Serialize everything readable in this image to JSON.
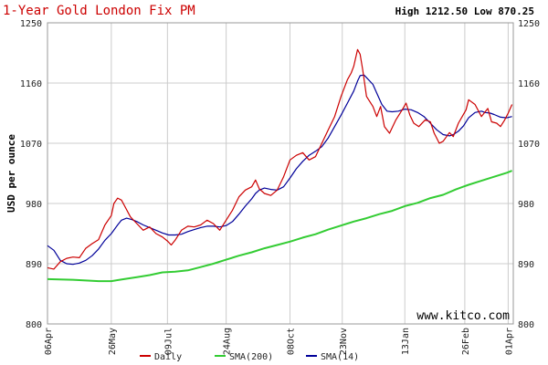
{
  "chart_data": {
    "type": "line",
    "title": "1-Year Gold London Fix PM",
    "high_label": "High",
    "high_value": "1212.50",
    "low_label": "Low",
    "low_value": "870.25",
    "ylabel": "USD per ounce",
    "watermark": "www.kitco.com",
    "ylim": [
      800,
      1250
    ],
    "yticks": [
      800,
      890,
      980,
      1070,
      1160,
      1250
    ],
    "yticklabels": [
      "800",
      "890",
      "980",
      "1070",
      "1160",
      "1250"
    ],
    "xlim": [
      0,
      365
    ],
    "xticks": [
      0,
      50,
      94,
      140,
      190,
      231,
      280,
      327,
      361
    ],
    "xticklabels": [
      "06Apr",
      "26May",
      "09Jul",
      "24Aug",
      "08Oct",
      "23Nov",
      "13Jan",
      "26Feb",
      "01Apr"
    ],
    "grid": true,
    "legend_position": "bottom",
    "series": [
      {
        "name": "Daily",
        "color": "#cc0000",
        "points": [
          [
            0,
            884
          ],
          [
            5,
            882
          ],
          [
            10,
            893
          ],
          [
            15,
            898
          ],
          [
            20,
            900
          ],
          [
            25,
            899
          ],
          [
            30,
            913
          ],
          [
            35,
            920
          ],
          [
            40,
            926
          ],
          [
            45,
            948
          ],
          [
            50,
            962
          ],
          [
            52,
            980
          ],
          [
            55,
            988
          ],
          [
            58,
            985
          ],
          [
            60,
            978
          ],
          [
            65,
            960
          ],
          [
            70,
            950
          ],
          [
            75,
            940
          ],
          [
            80,
            945
          ],
          [
            85,
            935
          ],
          [
            90,
            930
          ],
          [
            94,
            924
          ],
          [
            97,
            918
          ],
          [
            100,
            925
          ],
          [
            105,
            940
          ],
          [
            110,
            946
          ],
          [
            115,
            945
          ],
          [
            120,
            948
          ],
          [
            125,
            955
          ],
          [
            130,
            950
          ],
          [
            135,
            940
          ],
          [
            140,
            955
          ],
          [
            145,
            970
          ],
          [
            150,
            990
          ],
          [
            155,
            1000
          ],
          [
            160,
            1005
          ],
          [
            163,
            1015
          ],
          [
            166,
            1002
          ],
          [
            170,
            995
          ],
          [
            175,
            992
          ],
          [
            180,
            1000
          ],
          [
            185,
            1020
          ],
          [
            190,
            1045
          ],
          [
            195,
            1052
          ],
          [
            200,
            1056
          ],
          [
            205,
            1045
          ],
          [
            210,
            1050
          ],
          [
            215,
            1070
          ],
          [
            220,
            1090
          ],
          [
            225,
            1110
          ],
          [
            230,
            1140
          ],
          [
            235,
            1165
          ],
          [
            238,
            1175
          ],
          [
            240,
            1185
          ],
          [
            243,
            1210
          ],
          [
            245,
            1203
          ],
          [
            247,
            1180
          ],
          [
            250,
            1140
          ],
          [
            255,
            1125
          ],
          [
            258,
            1110
          ],
          [
            261,
            1125
          ],
          [
            264,
            1095
          ],
          [
            268,
            1085
          ],
          [
            273,
            1105
          ],
          [
            278,
            1120
          ],
          [
            281,
            1130
          ],
          [
            284,
            1112
          ],
          [
            287,
            1100
          ],
          [
            291,
            1095
          ],
          [
            296,
            1105
          ],
          [
            300,
            1102
          ],
          [
            303,
            1085
          ],
          [
            307,
            1070
          ],
          [
            310,
            1073
          ],
          [
            315,
            1086
          ],
          [
            318,
            1080
          ],
          [
            322,
            1100
          ],
          [
            325,
            1110
          ],
          [
            328,
            1120
          ],
          [
            330,
            1135
          ],
          [
            335,
            1128
          ],
          [
            340,
            1110
          ],
          [
            345,
            1122
          ],
          [
            348,
            1102
          ],
          [
            352,
            1100
          ],
          [
            355,
            1095
          ],
          [
            358,
            1104
          ],
          [
            361,
            1115
          ],
          [
            364,
            1128
          ]
        ]
      },
      {
        "name": "SMA(200)",
        "color": "#33cc33",
        "points": [
          [
            0,
            867
          ],
          [
            20,
            866
          ],
          [
            40,
            864
          ],
          [
            50,
            864
          ],
          [
            60,
            867
          ],
          [
            70,
            870
          ],
          [
            80,
            873
          ],
          [
            90,
            877
          ],
          [
            100,
            878
          ],
          [
            110,
            880
          ],
          [
            120,
            885
          ],
          [
            130,
            890
          ],
          [
            140,
            896
          ],
          [
            150,
            902
          ],
          [
            160,
            907
          ],
          [
            170,
            913
          ],
          [
            180,
            918
          ],
          [
            190,
            923
          ],
          [
            200,
            929
          ],
          [
            210,
            934
          ],
          [
            220,
            941
          ],
          [
            230,
            947
          ],
          [
            240,
            953
          ],
          [
            250,
            958
          ],
          [
            260,
            964
          ],
          [
            270,
            969
          ],
          [
            280,
            976
          ],
          [
            290,
            981
          ],
          [
            300,
            988
          ],
          [
            310,
            993
          ],
          [
            320,
            1001
          ],
          [
            330,
            1008
          ],
          [
            340,
            1014
          ],
          [
            350,
            1020
          ],
          [
            360,
            1026
          ],
          [
            364,
            1029
          ]
        ]
      },
      {
        "name": "SMA(14)",
        "color": "#000099",
        "points": [
          [
            0,
            917
          ],
          [
            5,
            910
          ],
          [
            10,
            895
          ],
          [
            15,
            890
          ],
          [
            20,
            889
          ],
          [
            25,
            891
          ],
          [
            30,
            895
          ],
          [
            35,
            902
          ],
          [
            40,
            912
          ],
          [
            45,
            925
          ],
          [
            50,
            935
          ],
          [
            55,
            948
          ],
          [
            58,
            955
          ],
          [
            62,
            958
          ],
          [
            66,
            956
          ],
          [
            70,
            953
          ],
          [
            75,
            948
          ],
          [
            80,
            944
          ],
          [
            85,
            940
          ],
          [
            90,
            936
          ],
          [
            95,
            933
          ],
          [
            100,
            933
          ],
          [
            105,
            934
          ],
          [
            110,
            938
          ],
          [
            115,
            941
          ],
          [
            120,
            944
          ],
          [
            125,
            946
          ],
          [
            130,
            946
          ],
          [
            135,
            945
          ],
          [
            140,
            947
          ],
          [
            145,
            953
          ],
          [
            150,
            964
          ],
          [
            155,
            976
          ],
          [
            160,
            987
          ],
          [
            163,
            995
          ],
          [
            166,
            1000
          ],
          [
            170,
            1003
          ],
          [
            175,
            1001
          ],
          [
            180,
            1000
          ],
          [
            185,
            1005
          ],
          [
            190,
            1018
          ],
          [
            195,
            1032
          ],
          [
            200,
            1043
          ],
          [
            205,
            1052
          ],
          [
            210,
            1058
          ],
          [
            215,
            1065
          ],
          [
            220,
            1078
          ],
          [
            225,
            1095
          ],
          [
            230,
            1112
          ],
          [
            235,
            1130
          ],
          [
            240,
            1148
          ],
          [
            243,
            1163
          ],
          [
            245,
            1171
          ],
          [
            248,
            1172
          ],
          [
            250,
            1168
          ],
          [
            255,
            1158
          ],
          [
            258,
            1145
          ],
          [
            262,
            1128
          ],
          [
            266,
            1118
          ],
          [
            270,
            1117
          ],
          [
            275,
            1118
          ],
          [
            280,
            1121
          ],
          [
            285,
            1120
          ],
          [
            290,
            1116
          ],
          [
            295,
            1110
          ],
          [
            300,
            1100
          ],
          [
            305,
            1090
          ],
          [
            310,
            1083
          ],
          [
            315,
            1081
          ],
          [
            318,
            1083
          ],
          [
            322,
            1088
          ],
          [
            326,
            1096
          ],
          [
            330,
            1108
          ],
          [
            335,
            1116
          ],
          [
            340,
            1118
          ],
          [
            343,
            1116
          ],
          [
            347,
            1115
          ],
          [
            350,
            1113
          ],
          [
            355,
            1109
          ],
          [
            360,
            1108
          ],
          [
            364,
            1110
          ]
        ]
      }
    ]
  }
}
